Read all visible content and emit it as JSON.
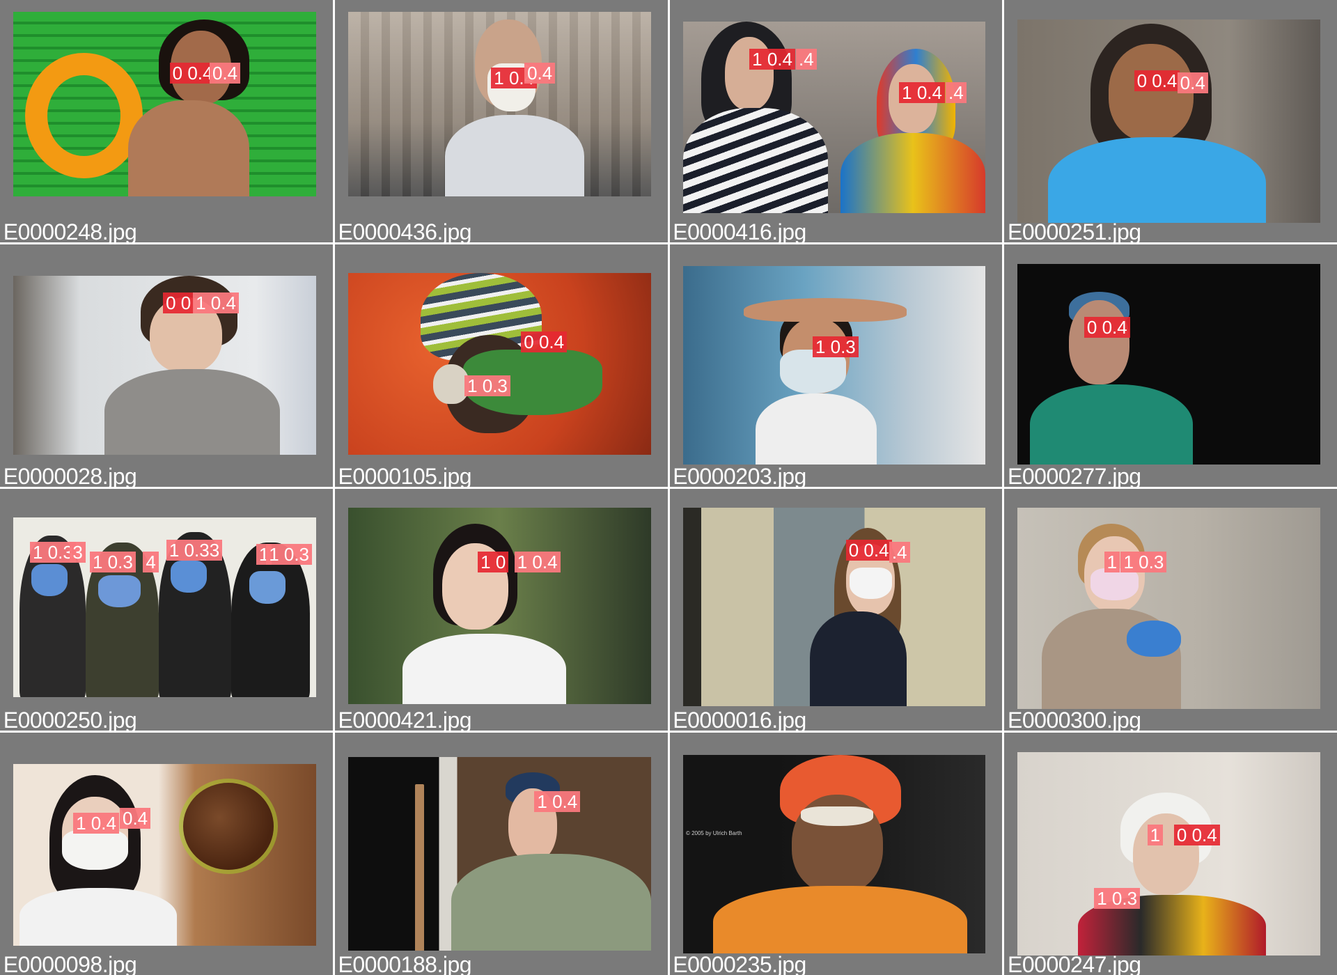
{
  "tiles": [
    {
      "file": "E0000248.jpg",
      "labels": [
        "0 0.4",
        "0.4"
      ]
    },
    {
      "file": "E0000436.jpg",
      "labels": [
        "1 0.4",
        "0.4"
      ]
    },
    {
      "file": "E0000416.jpg",
      "labels": [
        "1 0.4",
        ".4",
        "1 0.4",
        ".4"
      ]
    },
    {
      "file": "E0000251.jpg",
      "labels": [
        "0 0.4",
        "0.4"
      ]
    },
    {
      "file": "E0000028.jpg",
      "labels": [
        "0 0",
        "1 0.4"
      ]
    },
    {
      "file": "E0000105.jpg",
      "labels": [
        "0 0.4",
        "1 0.3"
      ]
    },
    {
      "file": "E0000203.jpg",
      "labels": [
        "1 0.3"
      ]
    },
    {
      "file": "E0000277.jpg",
      "labels": [
        "0 0.4"
      ]
    },
    {
      "file": "E0000250.jpg",
      "labels": [
        "1 0.3",
        "3",
        "1 0.3",
        "4",
        "1 0.33",
        "1",
        "1 0.3"
      ]
    },
    {
      "file": "E0000421.jpg",
      "labels": [
        "1 0",
        "1 0.4"
      ]
    },
    {
      "file": "E0000016.jpg",
      "labels": [
        "0 0.4",
        ".4"
      ]
    },
    {
      "file": "E0000300.jpg",
      "labels": [
        "1",
        "1 0.3"
      ]
    },
    {
      "file": "E0000098.jpg",
      "labels": [
        "1 0.4",
        "0.4"
      ]
    },
    {
      "file": "E0000188.jpg",
      "labels": [
        "1 0.4"
      ]
    },
    {
      "file": "E0000235.jpg",
      "labels": []
    },
    {
      "file": "E0000247.jpg",
      "labels": [
        "1 ",
        "0 0.4",
        "1 0.3"
      ]
    }
  ],
  "watermark": "© 2005 by Ulrich Barth",
  "colors": {
    "background": "#ffffff",
    "tile_bg": "#7a7a7a",
    "box_label": "#e6283a",
    "box_label_light": "#fa787d",
    "filename_text": "#ffffff"
  }
}
